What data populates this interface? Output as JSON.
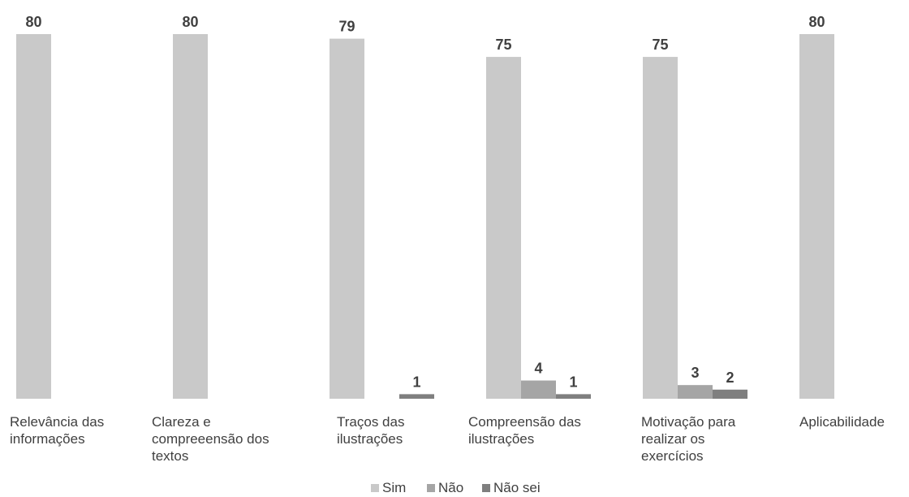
{
  "chart_data": {
    "type": "bar",
    "title": "",
    "xlabel": "",
    "ylabel": "",
    "ylim": [
      0,
      80
    ],
    "grid": false,
    "legend_position": "bottom",
    "categories": [
      [
        "Relevância das",
        "informações"
      ],
      [
        "Clareza e",
        "compreeensão dos",
        "textos"
      ],
      [
        "Traços das",
        "ilustrações"
      ],
      [
        "Compreensão das",
        "ilustrações"
      ],
      [
        "Motivação para",
        "realizar os",
        "exercícios"
      ],
      [
        "Aplicabilidade"
      ]
    ],
    "series": [
      {
        "name": "Sim",
        "color": "#c9c9c9",
        "values": [
          80,
          80,
          79,
          75,
          75,
          80
        ]
      },
      {
        "name": "Não",
        "color": "#a5a5a5",
        "values": [
          0,
          0,
          0,
          4,
          3,
          0
        ]
      },
      {
        "name": "Não sei",
        "color": "#7f7f7f",
        "values": [
          0,
          0,
          1,
          1,
          2,
          0
        ]
      }
    ]
  }
}
